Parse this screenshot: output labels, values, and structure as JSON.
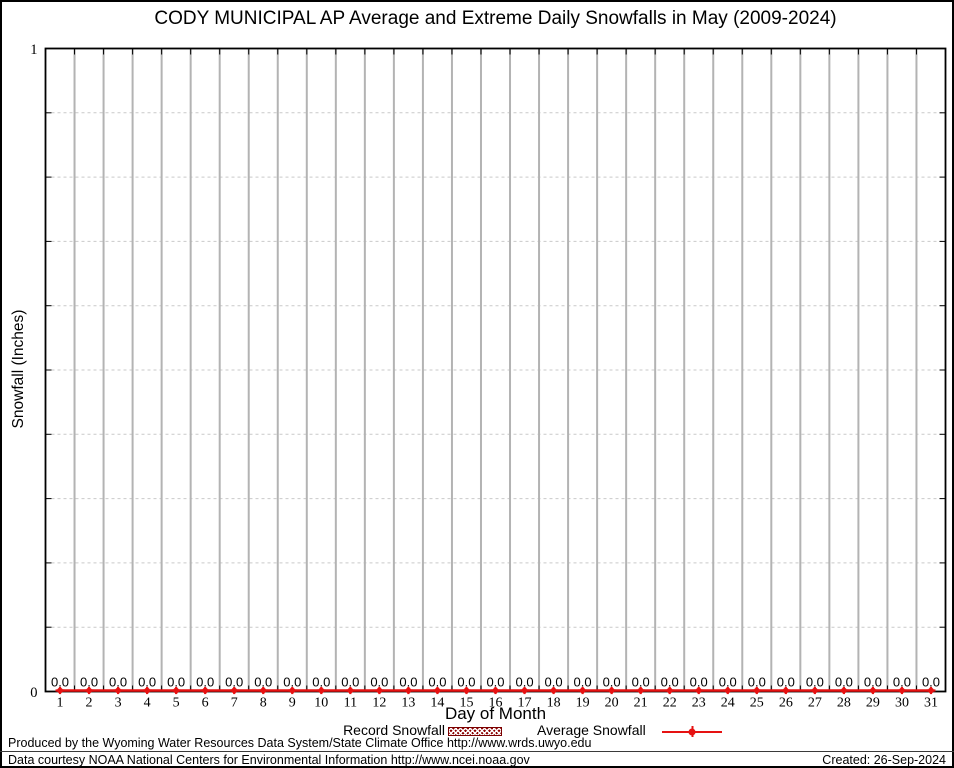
{
  "title": "CODY MUNICIPAL AP Average and Extreme Daily Snowfalls in May (2009-2024)",
  "y_axis": {
    "label": "Snowfall (Inches)",
    "ticks": [
      {
        "value": 0,
        "label": "0"
      },
      {
        "value": 1,
        "label": "1"
      }
    ]
  },
  "x_axis": {
    "label": "Day of Month"
  },
  "legend": {
    "record_label": "Record Snowfall",
    "average_label": "Average Snowfall"
  },
  "footer": {
    "produced_by": "Produced by the Wyoming Water Resources Data System/State Climate Office http://www.wrds.uwyo.edu",
    "data_courtesy": "Data courtesy NOAA National Centers for Environmental Information http://www.ncei.noaa.gov",
    "created": "Created: 26-Sep-2024"
  },
  "colors": {
    "average_line": "#e61212",
    "record_fill": "#8b0000",
    "grid_vertical": "#b3b3b3",
    "grid_horizontal": "#c9c9c9",
    "axis": "#000000"
  },
  "chart_data": {
    "type": "line",
    "title": "CODY MUNICIPAL AP Average and Extreme Daily Snowfalls in May (2009-2024)",
    "xlabel": "Day of Month",
    "ylabel": "Snowfall (Inches)",
    "xlim": [
      0.5,
      31.5
    ],
    "ylim": [
      0,
      1
    ],
    "grid": {
      "vertical": "solid gray line between each day",
      "horizontal": "dashed gray line every 0.1"
    },
    "legend_position": "below plot, centered",
    "x_categories": [
      1,
      2,
      3,
      4,
      5,
      6,
      7,
      8,
      9,
      10,
      11,
      12,
      13,
      14,
      15,
      16,
      17,
      18,
      19,
      20,
      21,
      22,
      23,
      24,
      25,
      26,
      27,
      28,
      29,
      30,
      31
    ],
    "series": [
      {
        "name": "Record Snowfall",
        "type": "bar",
        "values": [
          0,
          0,
          0,
          0,
          0,
          0,
          0,
          0,
          0,
          0,
          0,
          0,
          0,
          0,
          0,
          0,
          0,
          0,
          0,
          0,
          0,
          0,
          0,
          0,
          0,
          0,
          0,
          0,
          0,
          0,
          0
        ]
      },
      {
        "name": "Average Snowfall",
        "type": "line",
        "values": [
          0,
          0,
          0,
          0,
          0,
          0,
          0,
          0,
          0,
          0,
          0,
          0,
          0,
          0,
          0,
          0,
          0,
          0,
          0,
          0,
          0,
          0,
          0,
          0,
          0,
          0,
          0,
          0,
          0,
          0,
          0
        ]
      }
    ],
    "value_labels": [
      "0.0",
      "0.0",
      "0.0",
      "0.0",
      "0.0",
      "0.0",
      "0.0",
      "0.0",
      "0.0",
      "0.0",
      "0.0",
      "0.0",
      "0.0",
      "0.0",
      "0.0",
      "0.0",
      "0.0",
      "0.0",
      "0.0",
      "0.0",
      "0.0",
      "0.0",
      "0.0",
      "0.0",
      "0.0",
      "0.0",
      "0.0",
      "0.0",
      "0.0",
      "0.0",
      "0.0"
    ]
  }
}
